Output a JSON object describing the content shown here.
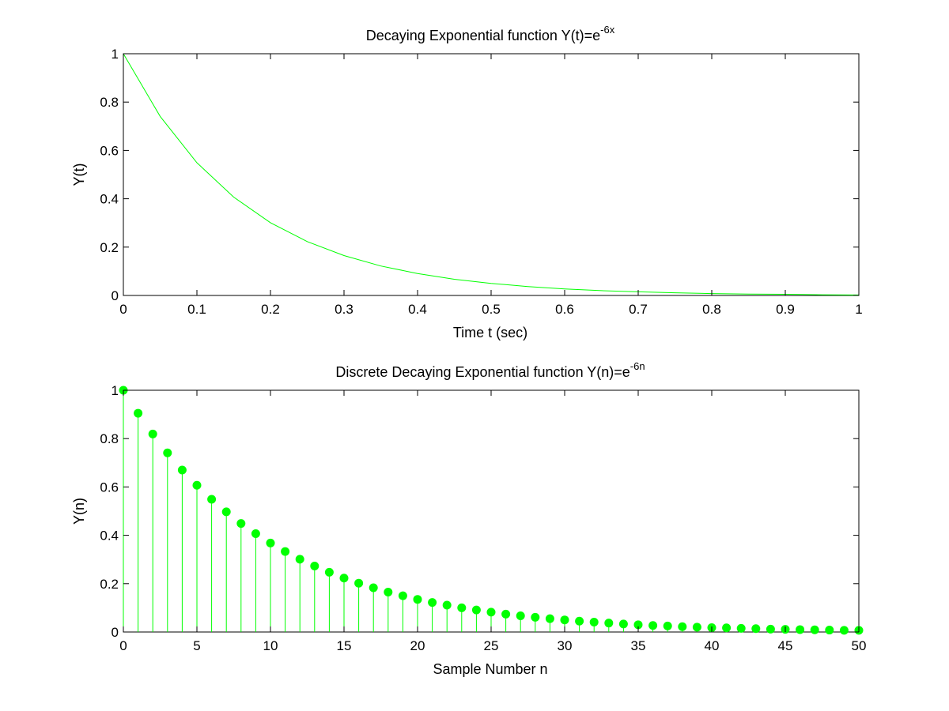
{
  "chart_data": [
    {
      "type": "line",
      "title": "Decaying Exponential function Y(t)=e",
      "title_sup": "-6x",
      "xlabel": "Time t (sec)",
      "ylabel": "Y(t)",
      "xlim": [
        0,
        1
      ],
      "ylim": [
        0,
        1
      ],
      "xticks": [
        0,
        0.1,
        0.2,
        0.3,
        0.4,
        0.5,
        0.6,
        0.7,
        0.8,
        0.9,
        1
      ],
      "xtick_labels": [
        "0",
        "0.1",
        "0.2",
        "0.3",
        "0.4",
        "0.5",
        "0.6",
        "0.7",
        "0.8",
        "0.9",
        "1"
      ],
      "yticks": [
        0,
        0.2,
        0.4,
        0.6,
        0.8,
        1
      ],
      "ytick_labels": [
        "0",
        "0.2",
        "0.4",
        "0.6",
        "0.8",
        "1"
      ],
      "grid": false,
      "series": [
        {
          "name": "Y(t)",
          "color": "#00ff00",
          "x": [
            0,
            0.05,
            0.1,
            0.15,
            0.2,
            0.25,
            0.3,
            0.35,
            0.4,
            0.45,
            0.5,
            0.55,
            0.6,
            0.65,
            0.7,
            0.75,
            0.8,
            0.85,
            0.9,
            0.95,
            1
          ],
          "y": [
            1,
            0.741,
            0.549,
            0.407,
            0.301,
            0.223,
            0.165,
            0.122,
            0.091,
            0.067,
            0.05,
            0.037,
            0.027,
            0.02,
            0.015,
            0.011,
            0.008,
            0.006,
            0.005,
            0.003,
            0.002
          ]
        }
      ]
    },
    {
      "type": "stem",
      "title": "Discrete Decaying Exponential function Y(n)=e",
      "title_sup": "-6n",
      "xlabel": "Sample Number n",
      "ylabel": "Y(n)",
      "xlim": [
        0,
        50
      ],
      "ylim": [
        0,
        1
      ],
      "xticks": [
        0,
        5,
        10,
        15,
        20,
        25,
        30,
        35,
        40,
        45,
        50
      ],
      "xtick_labels": [
        "0",
        "5",
        "10",
        "15",
        "20",
        "25",
        "30",
        "35",
        "40",
        "45",
        "50"
      ],
      "yticks": [
        0,
        0.2,
        0.4,
        0.6,
        0.8,
        1
      ],
      "ytick_labels": [
        "0",
        "0.2",
        "0.4",
        "0.6",
        "0.8",
        "1"
      ],
      "grid": false,
      "series": [
        {
          "name": "Y(n)",
          "color": "#00ff00",
          "x": [
            0,
            1,
            2,
            3,
            4,
            5,
            6,
            7,
            8,
            9,
            10,
            11,
            12,
            13,
            14,
            15,
            16,
            17,
            18,
            19,
            20,
            21,
            22,
            23,
            24,
            25,
            26,
            27,
            28,
            29,
            30,
            31,
            32,
            33,
            34,
            35,
            36,
            37,
            38,
            39,
            40,
            41,
            42,
            43,
            44,
            45,
            46,
            47,
            48,
            49,
            50
          ],
          "y": [
            1,
            0.905,
            0.819,
            0.741,
            0.67,
            0.607,
            0.549,
            0.497,
            0.449,
            0.407,
            0.368,
            0.333,
            0.301,
            0.273,
            0.247,
            0.223,
            0.202,
            0.183,
            0.165,
            0.15,
            0.135,
            0.122,
            0.111,
            0.1,
            0.091,
            0.082,
            0.074,
            0.067,
            0.061,
            0.055,
            0.05,
            0.045,
            0.041,
            0.037,
            0.033,
            0.03,
            0.027,
            0.025,
            0.022,
            0.02,
            0.018,
            0.017,
            0.015,
            0.014,
            0.012,
            0.011,
            0.01,
            0.009,
            0.008,
            0.007,
            0.007
          ]
        }
      ]
    }
  ]
}
